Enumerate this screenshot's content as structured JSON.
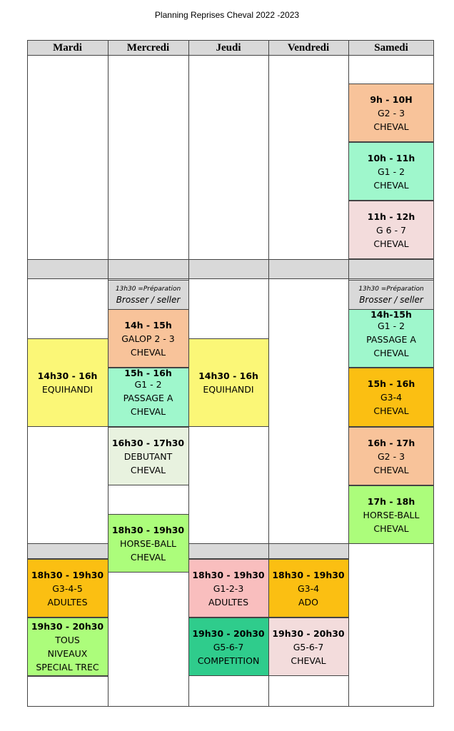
{
  "title": "Planning Reprises Cheval 2022 -2023",
  "days": [
    "Mardi",
    "Mercredi",
    "Jeudi",
    "Vendredi",
    "Samedi"
  ],
  "preparation": {
    "line1": "13h30 =Préparation",
    "line2": "Brosser / seller"
  },
  "colors": {
    "header_grey": "#d9d9d9",
    "peach": "#f8c39a",
    "mint": "#9ff7cc",
    "pink": "#f3dcdc",
    "yellow": "#fbf777",
    "orange": "#fbbf12",
    "light_green": "#acfd7b",
    "pale_green": "#e8f2df",
    "salmon": "#f9bebe",
    "teal": "#2fcc8c"
  },
  "mardi": {
    "equihandi": {
      "time": "14h30 - 16h",
      "l1": "EQUIHANDI"
    },
    "adultes": {
      "time": "18h30 - 19h30",
      "l1": "G3-4-5",
      "l2": "ADULTES"
    },
    "trec": {
      "time": "19h30 - 20h30",
      "l1": "TOUS",
      "l2": "NIVEAUX",
      "l3": "SPECIAL TREC"
    }
  },
  "mercredi": {
    "galop": {
      "time": "14h - 15h",
      "l1": "GALOP 2 - 3",
      "l2": "CHEVAL"
    },
    "passage": {
      "time": "15h - 16h",
      "l1": "G1 - 2",
      "l2": "PASSAGE A",
      "l3": "CHEVAL"
    },
    "debutant": {
      "time": "16h30 - 17h30",
      "l1": "DEBUTANT",
      "l2": "CHEVAL"
    },
    "horseball": {
      "time": "18h30 - 19h30",
      "l1": "HORSE-BALL",
      "l2": "CHEVAL"
    }
  },
  "jeudi": {
    "equihandi": {
      "time": "14h30 - 16h",
      "l1": "EQUIHANDI"
    },
    "adultes": {
      "time": "18h30 - 19h30",
      "l1": "G1-2-3",
      "l2": "ADULTES"
    },
    "competition": {
      "time": "19h30 - 20h30",
      "l1": "G5-6-7",
      "l2": "COMPETITION"
    }
  },
  "vendredi": {
    "ado": {
      "time": "18h30 - 19h30",
      "l1": "G3-4",
      "l2": "ADO"
    },
    "cheval": {
      "time": "19h30 - 20h30",
      "l1": "G5-6-7",
      "l2": "CHEVAL"
    }
  },
  "samedi": {
    "s9": {
      "time": "9h - 10H",
      "l1": "G2 - 3",
      "l2": "CHEVAL"
    },
    "s10": {
      "time": "10h - 11h",
      "l1": "G1 - 2",
      "l2": "CHEVAL"
    },
    "s11": {
      "time": "11h - 12h",
      "l1": "G 6 - 7",
      "l2": "CHEVAL"
    },
    "s14": {
      "time": "14h-15h",
      "l1": "G1 - 2",
      "l2": "PASSAGE A",
      "l3": "CHEVAL"
    },
    "s15": {
      "time": "15h - 16h",
      "l1": "G3-4",
      "l2": "CHEVAL"
    },
    "s16": {
      "time": "16h - 17h",
      "l1": "G2 - 3",
      "l2": "CHEVAL"
    },
    "s17": {
      "time": "17h - 18h",
      "l1": "HORSE-BALL",
      "l2": "CHEVAL"
    }
  }
}
